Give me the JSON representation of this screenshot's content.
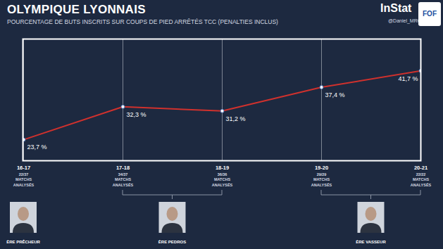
{
  "chart_data": {
    "type": "line",
    "title": "OLYMPIQUE LYONNAIS",
    "subtitle": "POURCENTAGE DE BUTS INSCRITS SUR COUPS DE PIED ARRÊTÉS TCC (PENALTIES INCLUS)",
    "source": "InStat",
    "credit": "@Daniel_MRQ",
    "logo": "FOF",
    "categories": [
      "16-17",
      "17-18",
      "18-19",
      "19-20",
      "20-21"
    ],
    "values": [
      23.7,
      32.3,
      31.2,
      37.4,
      41.7
    ],
    "value_labels": [
      "23,7 %",
      "32,3 %",
      "31,2 %",
      "37,4 %",
      "41,7 %"
    ],
    "matches_analysed": [
      "22/37",
      "34/37",
      "36/36",
      "29/29",
      "22/22"
    ],
    "matches_text": [
      "MATCHS",
      "ANALYSÉS"
    ],
    "eras": [
      {
        "label": "ÈRE PRÊCHEUR",
        "from": "16-17",
        "to": "16-17"
      },
      {
        "label": "ÈRE PEDROS",
        "from": "17-18",
        "to": "18-19"
      },
      {
        "label": "ÈRE VASSEUR",
        "from": "19-20",
        "to": "20-21"
      }
    ],
    "color": "#d0312d",
    "marker": "circle",
    "ylim": [
      18.2,
      50
    ],
    "yticks": [],
    "grid": true,
    "data_labels": true,
    "tick_labels": "x"
  }
}
